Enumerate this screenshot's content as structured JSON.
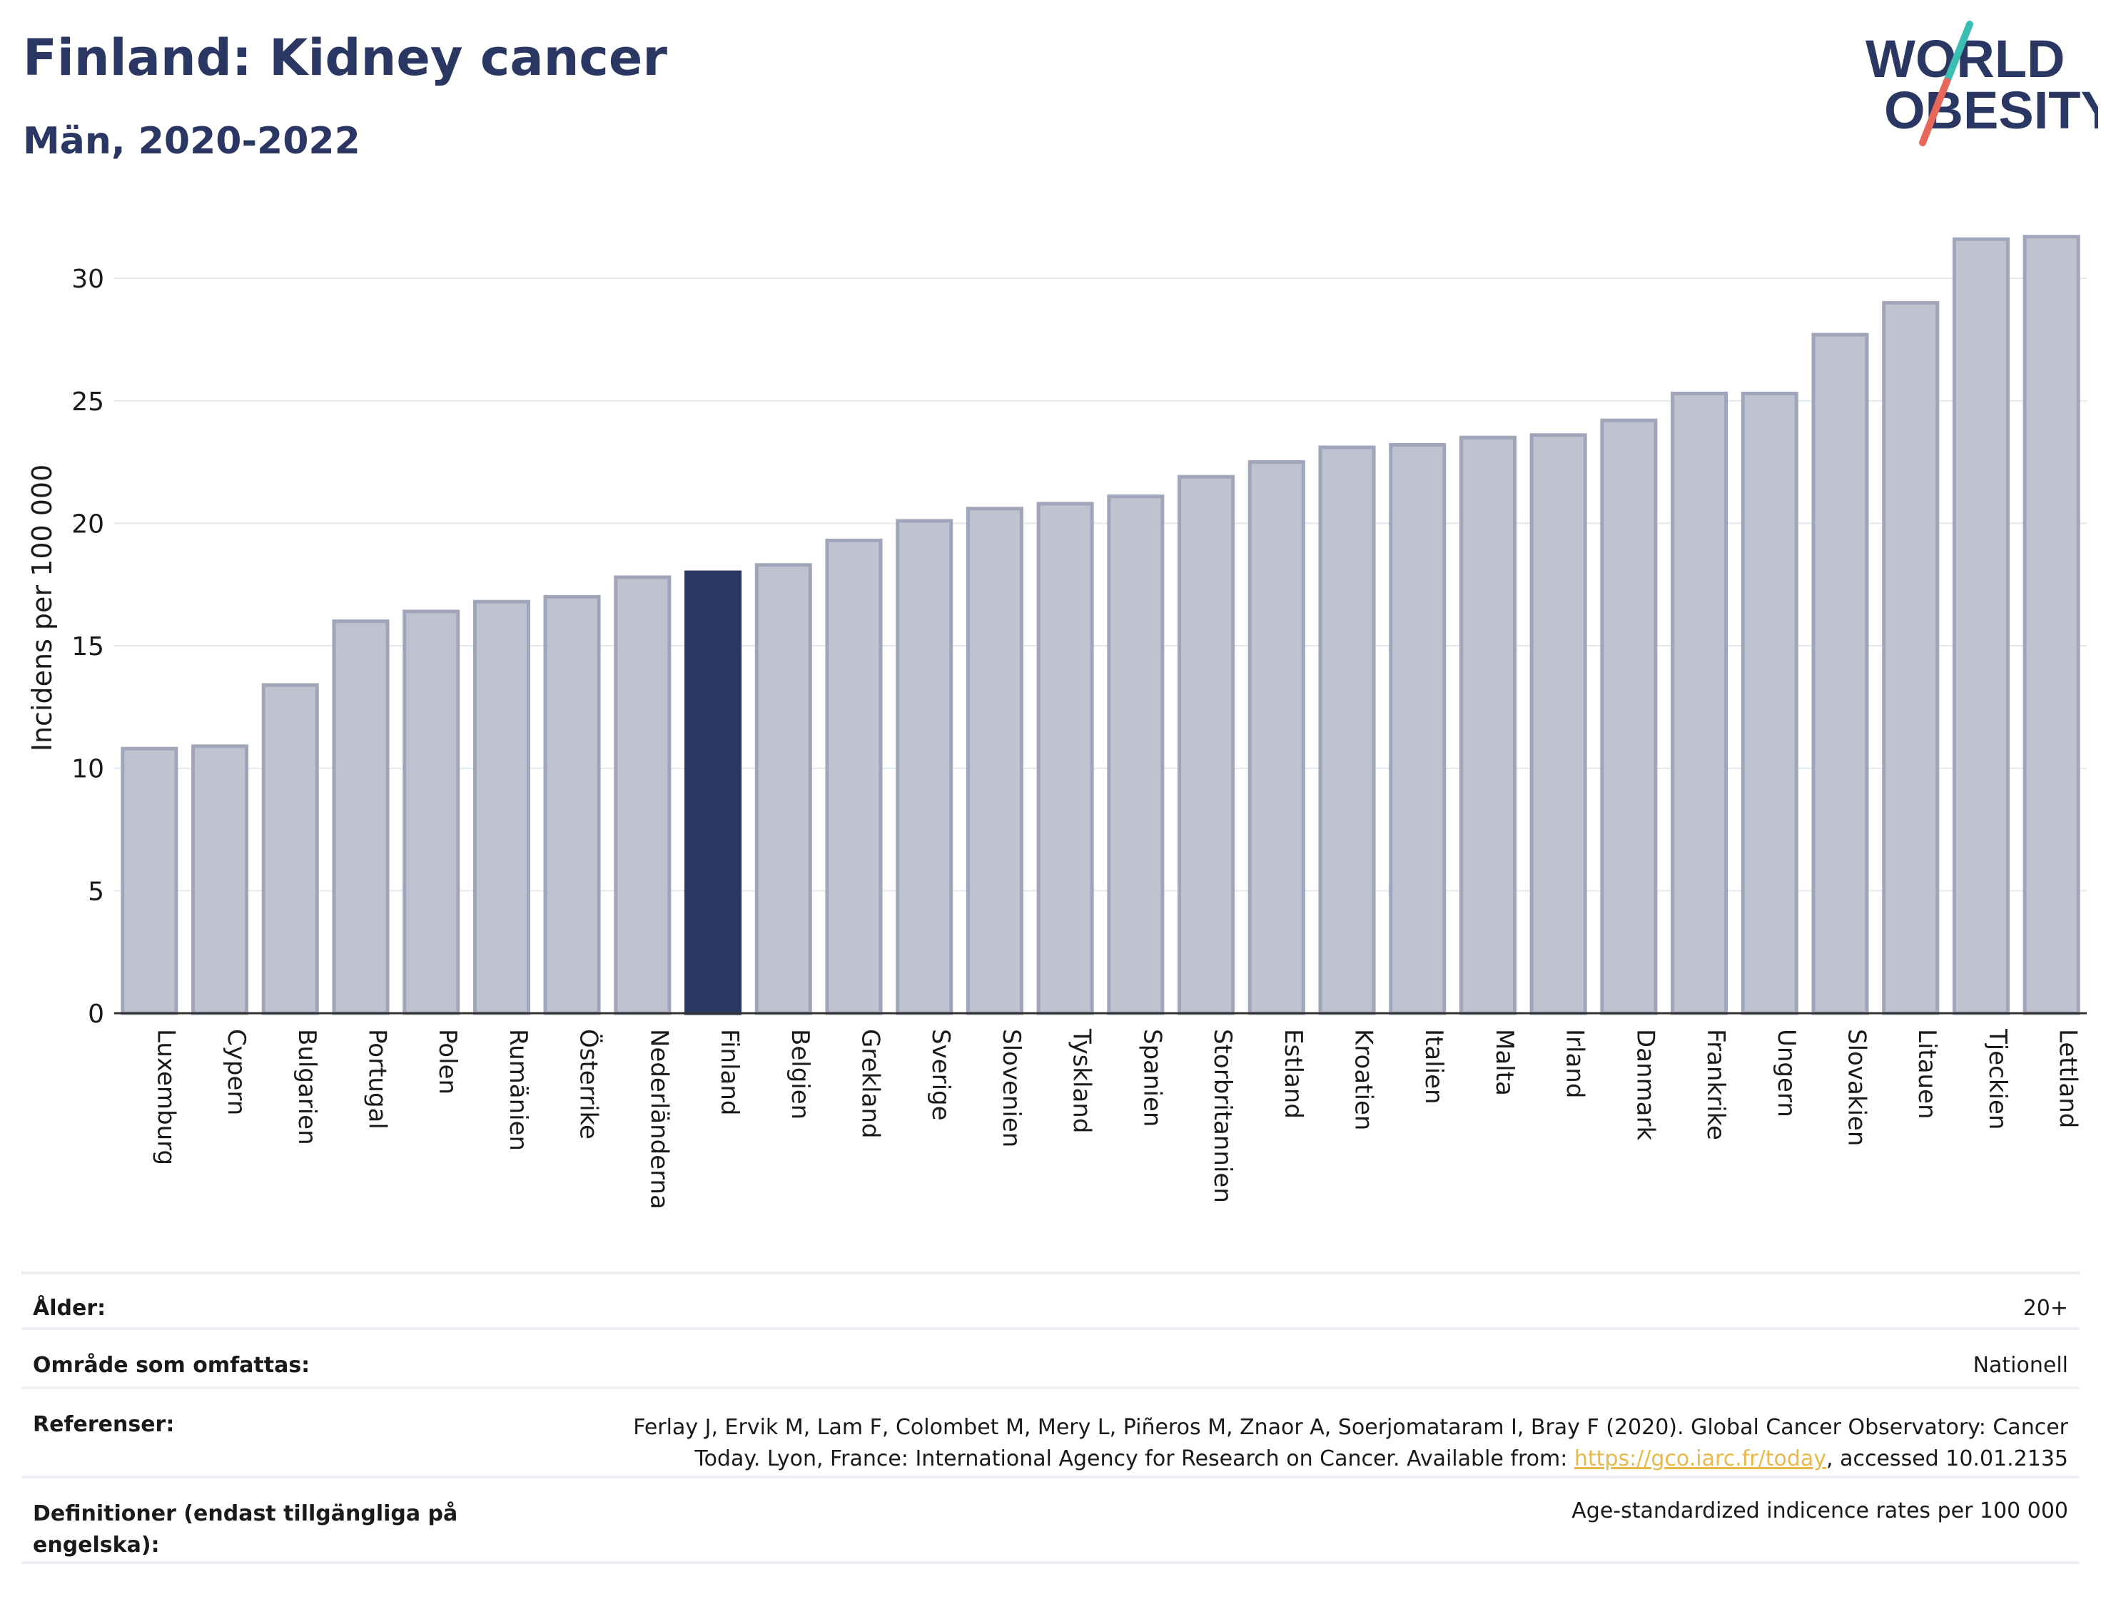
{
  "header": {
    "title": "Finland: Kidney cancer",
    "subtitle": "Män, 2020-2022"
  },
  "logo": {
    "line1": "WORLD",
    "line2": "OBESITY",
    "colors": {
      "text": "#2b3763",
      "slash_top": "#3bbfb2",
      "slash_bottom": "#e8675b"
    }
  },
  "chart_data": {
    "type": "bar",
    "title": "",
    "xlabel": "",
    "ylabel": "Incidens per 100 000",
    "ylim": [
      0,
      32
    ],
    "yticks": [
      0,
      5,
      10,
      15,
      20,
      25,
      30
    ],
    "grid": true,
    "highlight": "Finland",
    "colors": {
      "highlight": "#2b3763",
      "bar": "#bfc3d0",
      "bar_border": "#a0a5ba"
    },
    "categories": [
      "Luxemburg",
      "Cypern",
      "Bulgarien",
      "Portugal",
      "Polen",
      "Rumänien",
      "Österrike",
      "Nederländerna",
      "Finland",
      "Belgien",
      "Grekland",
      "Sverige",
      "Slovenien",
      "Tyskland",
      "Spanien",
      "Storbritannien",
      "Estland",
      "Kroatien",
      "Italien",
      "Malta",
      "Irland",
      "Danmark",
      "Frankrike",
      "Ungern",
      "Slovakien",
      "Litauen",
      "Tjeckien",
      "Lettland"
    ],
    "values": [
      10.8,
      10.9,
      13.4,
      16.0,
      16.4,
      16.8,
      17.0,
      17.8,
      18.0,
      18.3,
      19.3,
      20.1,
      20.6,
      20.8,
      21.1,
      21.9,
      22.5,
      23.1,
      23.2,
      23.5,
      23.6,
      24.2,
      25.3,
      25.3,
      27.7,
      29.0,
      31.6,
      31.7
    ]
  },
  "info_table": {
    "age_label": "Ålder:",
    "age_value": "20+",
    "area_label": "Område som omfattas:",
    "area_value": "Nationell",
    "refs_label": "Referenser:",
    "refs_text_1": "Ferlay J, Ervik M, Lam F, Colombet M, Mery L, Piñeros M, Znaor A, Soerjomataram I, Bray F (2020). Global Cancer Observatory: Cancer Today. Lyon, France: International Agency for Research on Cancer. Available from: ",
    "refs_link": "https://gco.iarc.fr/today",
    "refs_text_2": ", accessed 10.01.2135",
    "defs_label": "Definitioner (endast tillgängliga på engelska):",
    "defs_value": "Age-standardized indicence rates per 100 000"
  }
}
